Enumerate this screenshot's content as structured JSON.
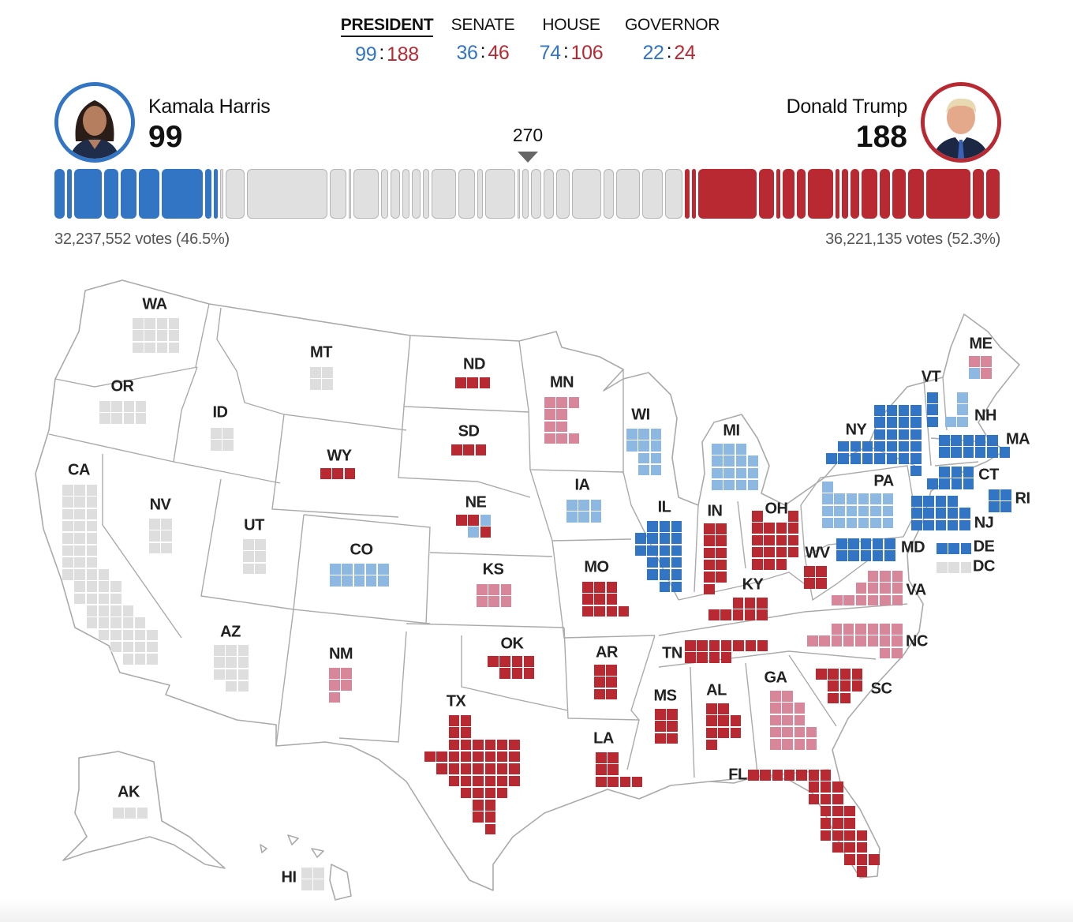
{
  "nav": {
    "items": [
      {
        "label": "PRESIDENT",
        "dem": "99",
        "rep": "188",
        "active": true
      },
      {
        "label": "SENATE",
        "dem": "36",
        "rep": "46",
        "active": false
      },
      {
        "label": "HOUSE",
        "dem": "74",
        "rep": "106",
        "active": false
      },
      {
        "label": "GOVERNOR",
        "dem": "22",
        "rep": "24",
        "active": false
      }
    ],
    "separator": ":"
  },
  "candidates": {
    "dem": {
      "name": "Kamala Harris",
      "ev": "99",
      "votes": "32,237,552 votes (46.5%)"
    },
    "rep": {
      "name": "Donald Trump",
      "ev": "188",
      "votes": "36,221,135 votes (52.3%)"
    }
  },
  "threshold": "270",
  "colors": {
    "dem": "#3375c5",
    "lean-dem": "#8db8e1",
    "rep": "#b92932",
    "lean-rep": "#d8879a",
    "pending": "#dedede"
  },
  "bar": {
    "dem": [
      7,
      3,
      19,
      10,
      11,
      14,
      28,
      4,
      3
    ],
    "pending": [
      1,
      12,
      54,
      10,
      1,
      16,
      4,
      5,
      4,
      5,
      3,
      16,
      10,
      3,
      19,
      1,
      3,
      6,
      6,
      8,
      19,
      6,
      15,
      13,
      11
    ],
    "rep": [
      3,
      3,
      40,
      10,
      3,
      8,
      6,
      17,
      3,
      4,
      6,
      11,
      7,
      9,
      11,
      30,
      8,
      9
    ]
  },
  "states": [
    {
      "abbr": "WA",
      "ev": 12,
      "status": "pending"
    },
    {
      "abbr": "OR",
      "ev": 8,
      "status": "pending"
    },
    {
      "abbr": "CA",
      "ev": 54,
      "status": "pending"
    },
    {
      "abbr": "ID",
      "ev": 4,
      "status": "pending"
    },
    {
      "abbr": "NV",
      "ev": 6,
      "status": "pending"
    },
    {
      "abbr": "MT",
      "ev": 4,
      "status": "pending"
    },
    {
      "abbr": "WY",
      "ev": 3,
      "status": "rep"
    },
    {
      "abbr": "UT",
      "ev": 6,
      "status": "pending"
    },
    {
      "abbr": "CO",
      "ev": 10,
      "status": "lean-dem"
    },
    {
      "abbr": "AZ",
      "ev": 11,
      "status": "pending"
    },
    {
      "abbr": "NM",
      "ev": 5,
      "status": "lean-rep"
    },
    {
      "abbr": "ND",
      "ev": 3,
      "status": "rep"
    },
    {
      "abbr": "SD",
      "ev": 3,
      "status": "rep"
    },
    {
      "abbr": "NE",
      "ev": 5,
      "tiles": [
        "rep",
        "rep",
        "lean-dem",
        "lean-dem",
        "rep"
      ]
    },
    {
      "abbr": "KS",
      "ev": 6,
      "status": "lean-rep"
    },
    {
      "abbr": "OK",
      "ev": 7,
      "status": "rep"
    },
    {
      "abbr": "TX",
      "ev": 40,
      "status": "rep"
    },
    {
      "abbr": "MN",
      "ev": 10,
      "status": "lean-rep"
    },
    {
      "abbr": "IA",
      "ev": 6,
      "status": "lean-dem"
    },
    {
      "abbr": "MO",
      "ev": 10,
      "status": "rep"
    },
    {
      "abbr": "AR",
      "ev": 6,
      "status": "rep"
    },
    {
      "abbr": "LA",
      "ev": 8,
      "status": "rep"
    },
    {
      "abbr": "WI",
      "ev": 10,
      "status": "lean-dem"
    },
    {
      "abbr": "IL",
      "ev": 19,
      "status": "dem"
    },
    {
      "abbr": "MS",
      "ev": 6,
      "status": "rep"
    },
    {
      "abbr": "MI",
      "ev": 15,
      "status": "lean-dem"
    },
    {
      "abbr": "IN",
      "ev": 11,
      "status": "rep"
    },
    {
      "abbr": "OH",
      "ev": 17,
      "status": "rep"
    },
    {
      "abbr": "KY",
      "ev": 8,
      "status": "rep"
    },
    {
      "abbr": "TN",
      "ev": 11,
      "status": "rep"
    },
    {
      "abbr": "AL",
      "ev": 9,
      "status": "rep"
    },
    {
      "abbr": "GA",
      "ev": 16,
      "status": "lean-rep"
    },
    {
      "abbr": "FL",
      "ev": 30,
      "status": "rep"
    },
    {
      "abbr": "SC",
      "ev": 9,
      "status": "rep"
    },
    {
      "abbr": "NC",
      "ev": 16,
      "status": "lean-rep"
    },
    {
      "abbr": "VA",
      "ev": 13,
      "status": "lean-rep"
    },
    {
      "abbr": "WV",
      "ev": 4,
      "status": "rep"
    },
    {
      "abbr": "PA",
      "ev": 19,
      "status": "lean-dem"
    },
    {
      "abbr": "NY",
      "ev": 28,
      "status": "dem"
    },
    {
      "abbr": "VT",
      "ev": 3,
      "status": "dem"
    },
    {
      "abbr": "NH",
      "ev": 4,
      "status": "lean-dem"
    },
    {
      "abbr": "ME",
      "ev": 4,
      "tiles": [
        "lean-rep",
        "lean-rep",
        "lean-dem",
        "lean-rep"
      ]
    },
    {
      "abbr": "MA",
      "ev": 11,
      "status": "dem"
    },
    {
      "abbr": "CT",
      "ev": 7,
      "status": "dem"
    },
    {
      "abbr": "RI",
      "ev": 4,
      "status": "dem"
    },
    {
      "abbr": "NJ",
      "ev": 14,
      "status": "dem"
    },
    {
      "abbr": "MD",
      "ev": 10,
      "status": "dem"
    },
    {
      "abbr": "DE",
      "ev": 3,
      "status": "dem"
    },
    {
      "abbr": "DC",
      "ev": 3,
      "status": "pending"
    },
    {
      "abbr": "AK",
      "ev": 3,
      "status": "pending"
    },
    {
      "abbr": "HI",
      "ev": 4,
      "status": "pending"
    }
  ]
}
